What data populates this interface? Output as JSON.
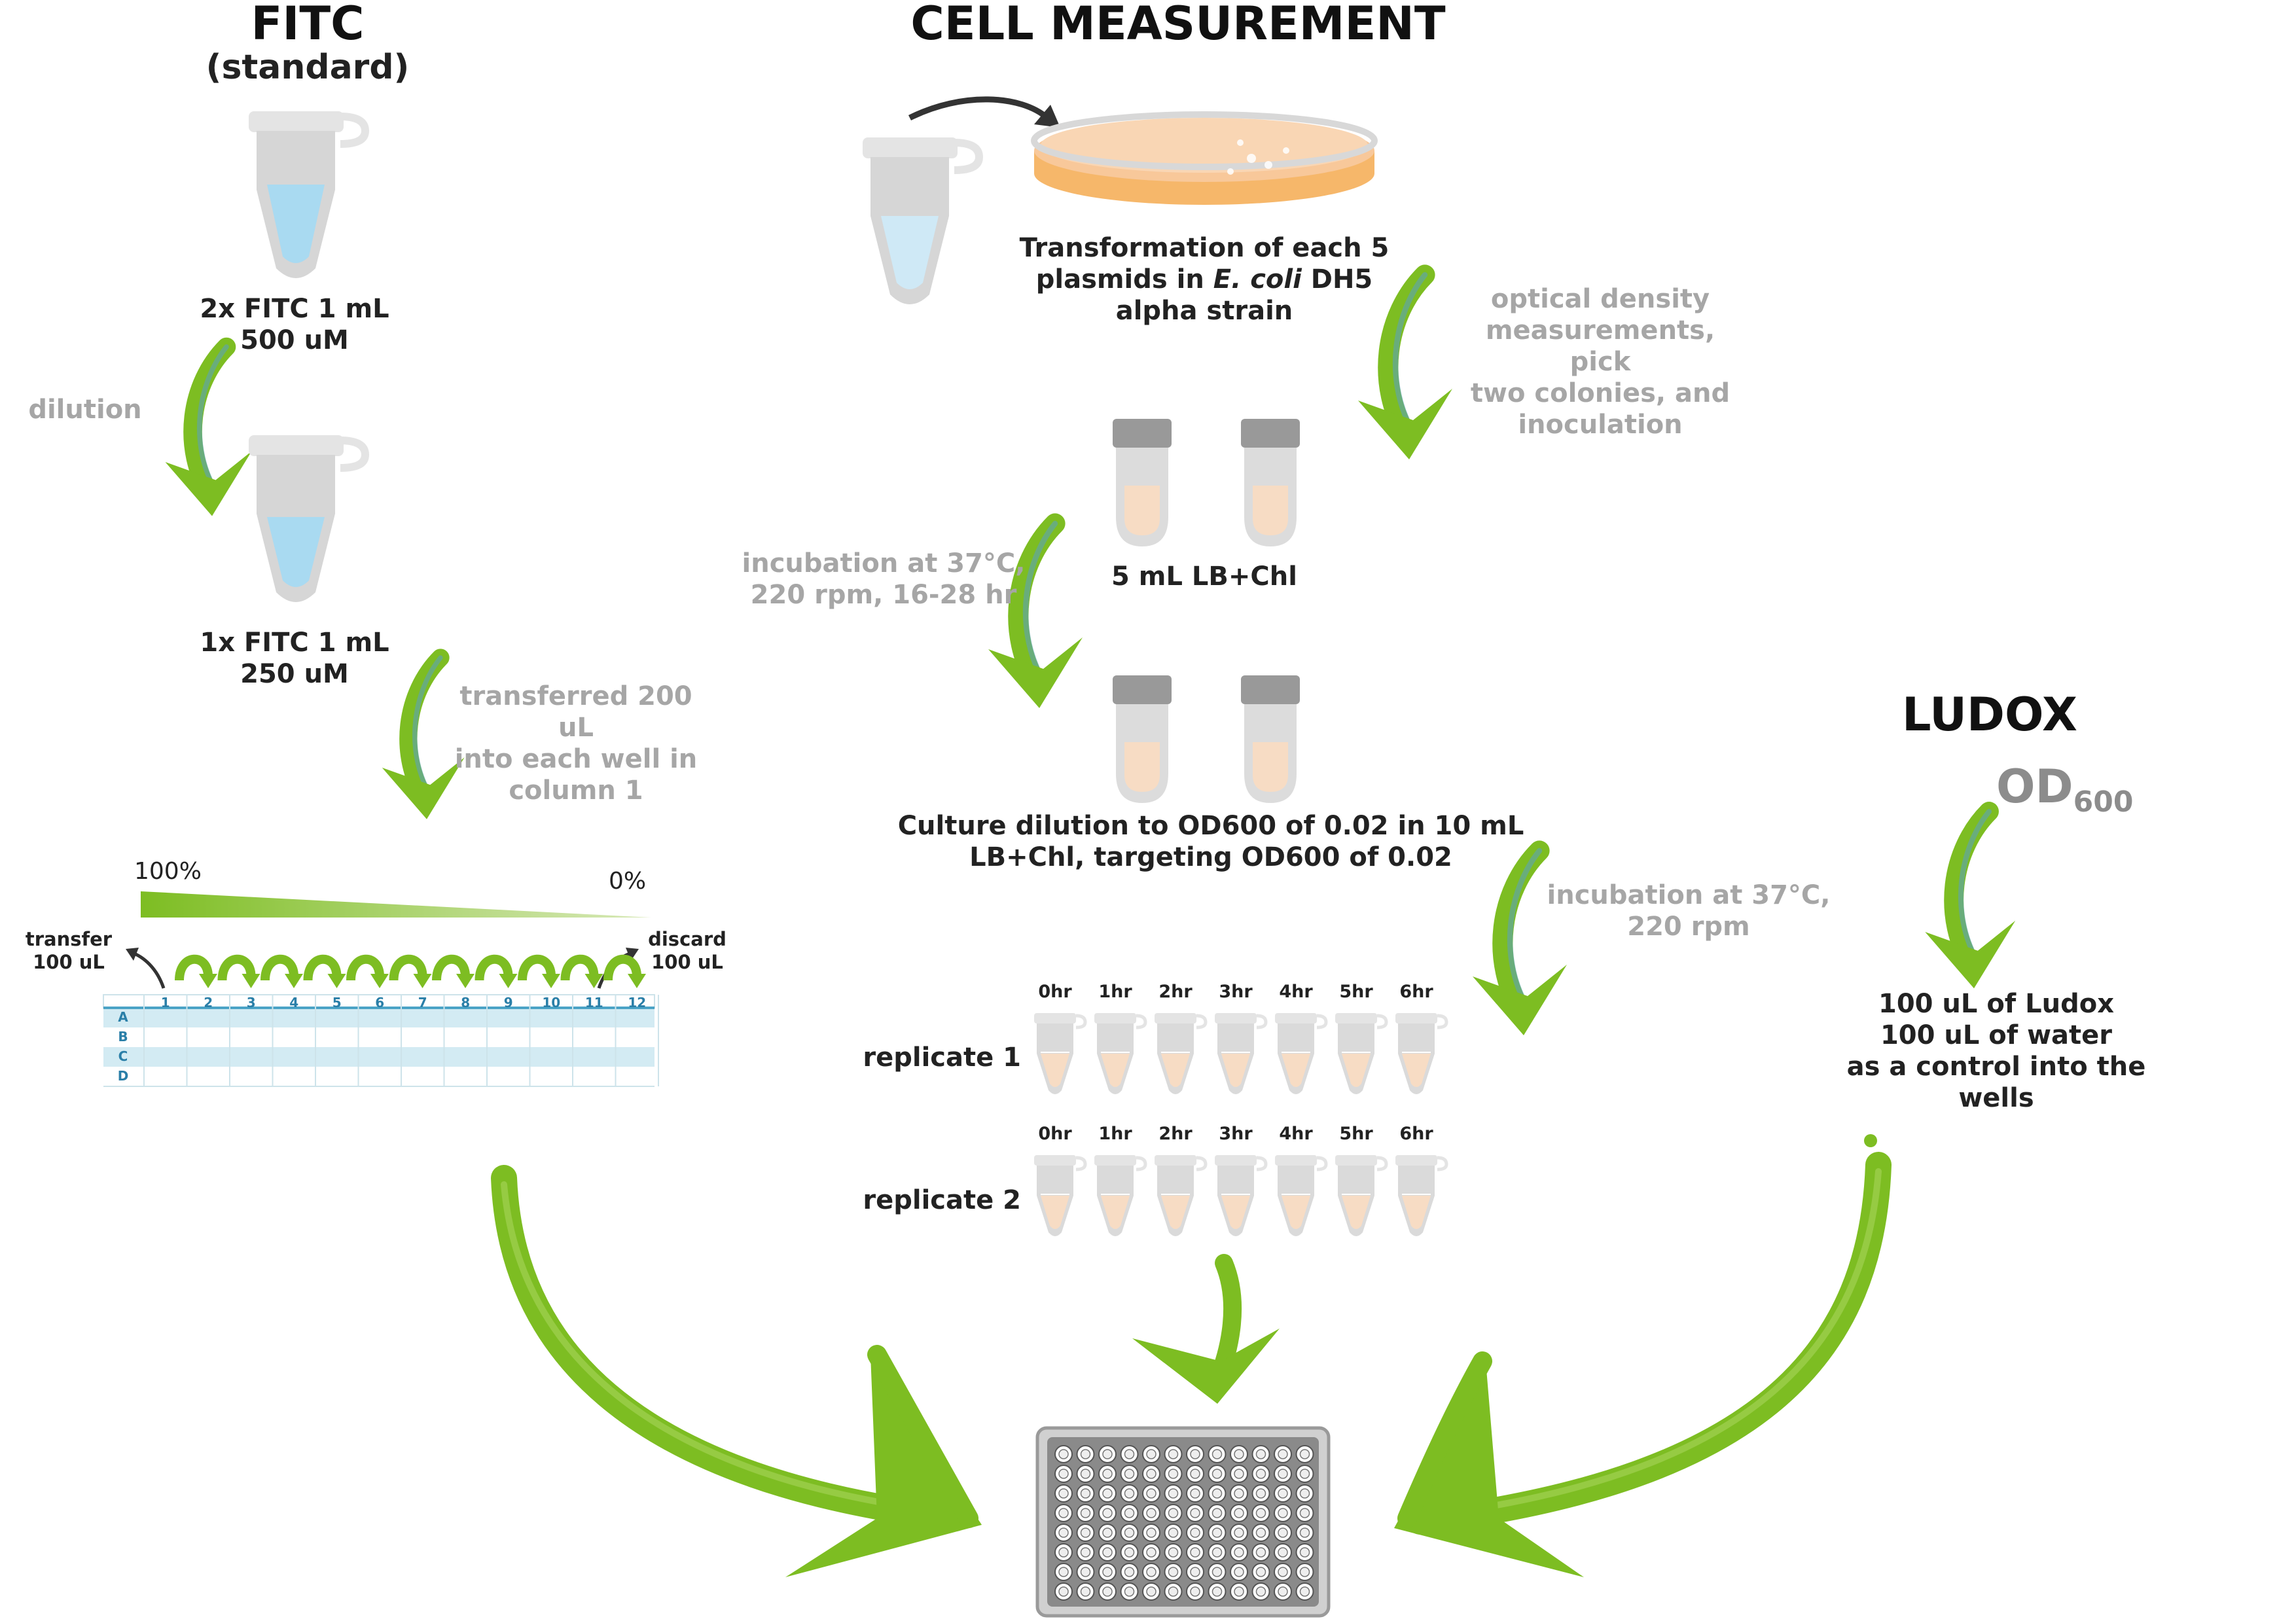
{
  "fitc": {
    "title": "FITC",
    "subtitle": "(standard)",
    "tube1_label_l1": "2x FITC 1 mL",
    "tube1_label_l2": "500 uM",
    "dilution": "dilution",
    "tube2_label_l1": "1x FITC 1 mL",
    "tube2_label_l2": "250 uM",
    "transfer_l1": "transferred 200 uL",
    "transfer_l2": "into each well in",
    "transfer_l3": "column 1",
    "gradient_start": "100%",
    "gradient_end": "0%",
    "transfer_left_l1": "transfer",
    "transfer_left_l2": "100 uL",
    "discard_l1": "discard",
    "discard_l2": "100 uL",
    "plate_columns": [
      "1",
      "2",
      "3",
      "4",
      "5",
      "6",
      "7",
      "8",
      "9",
      "10",
      "11",
      "12"
    ],
    "plate_rows": [
      "A",
      "B",
      "C",
      "D"
    ]
  },
  "cell": {
    "title": "CELL MEASUREMENT",
    "transform_l1": "Transformation of each 5",
    "transform_l2a": "plasmids in ",
    "transform_l2b": "E. coli",
    "transform_l2c": " DH5",
    "transform_l3": "alpha strain",
    "od_note_l1": "optical density",
    "od_note_l2": "measurements, pick",
    "od_note_l3": "two colonies, and",
    "od_note_l4": "inoculation",
    "medium": "5 mL LB+Chl",
    "incub1_l1": "incubation at 37°C,",
    "incub1_l2": "220 rpm, 16-28 hr",
    "culture_l1": "Culture dilution to OD600 of 0.02 in 10 mL",
    "culture_l2": "LB+Chl, targeting OD600 of 0.02",
    "incub2_l1": "incubation at 37°C,",
    "incub2_l2": "220 rpm",
    "times": [
      "0hr",
      "1hr",
      "2hr",
      "3hr",
      "4hr",
      "5hr",
      "6hr"
    ],
    "replicate1": "replicate 1",
    "replicate2": "replicate 2"
  },
  "ludox": {
    "title": "LUDOX",
    "od": "OD",
    "od_sub": "600",
    "desc_l1": "100 uL of Ludox",
    "desc_l2": "100 uL of water",
    "desc_l3": "as a control into the",
    "desc_l4": "wells"
  },
  "colors": {
    "arrow_green": "#7dbd22",
    "liquid_blue": "#a9daf1",
    "liquid_peach": "#f7dcc4",
    "dish_orange": "#f6b76a",
    "tube_grey": "#d6d6d6",
    "plate_blue": "#d3ebf3"
  }
}
